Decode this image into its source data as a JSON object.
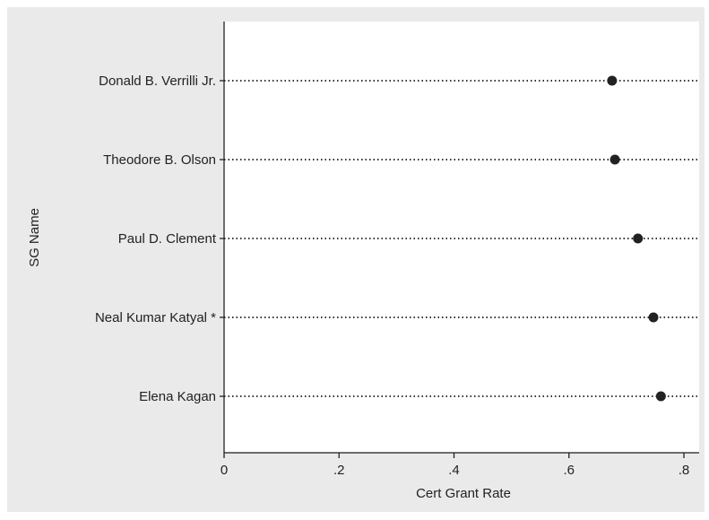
{
  "chart_data": {
    "type": "scatter",
    "subtype": "dot-plot",
    "title": "",
    "xlabel": "Cert Grant Rate",
    "ylabel": "SG Name",
    "xlim": [
      0,
      0.85
    ],
    "x_ticks": [
      0,
      0.2,
      0.4,
      0.6,
      0.8
    ],
    "x_tick_labels": [
      "0",
      ".2",
      ".4",
      ".6",
      ".8"
    ],
    "categories": [
      "Donald B. Verrilli Jr.",
      "Theodore B. Olson",
      "Paul D. Clement",
      "Neal Kumar Katyal *",
      "Elena Kagan"
    ],
    "values": [
      0.675,
      0.68,
      0.72,
      0.747,
      0.76
    ],
    "grid": false,
    "guide_lines": "dotted",
    "colors": {
      "outer_background": "#eaeaea",
      "plot_background": "#ffffff",
      "marker": "#222222",
      "guide": "#333333",
      "text": "#222222"
    }
  }
}
